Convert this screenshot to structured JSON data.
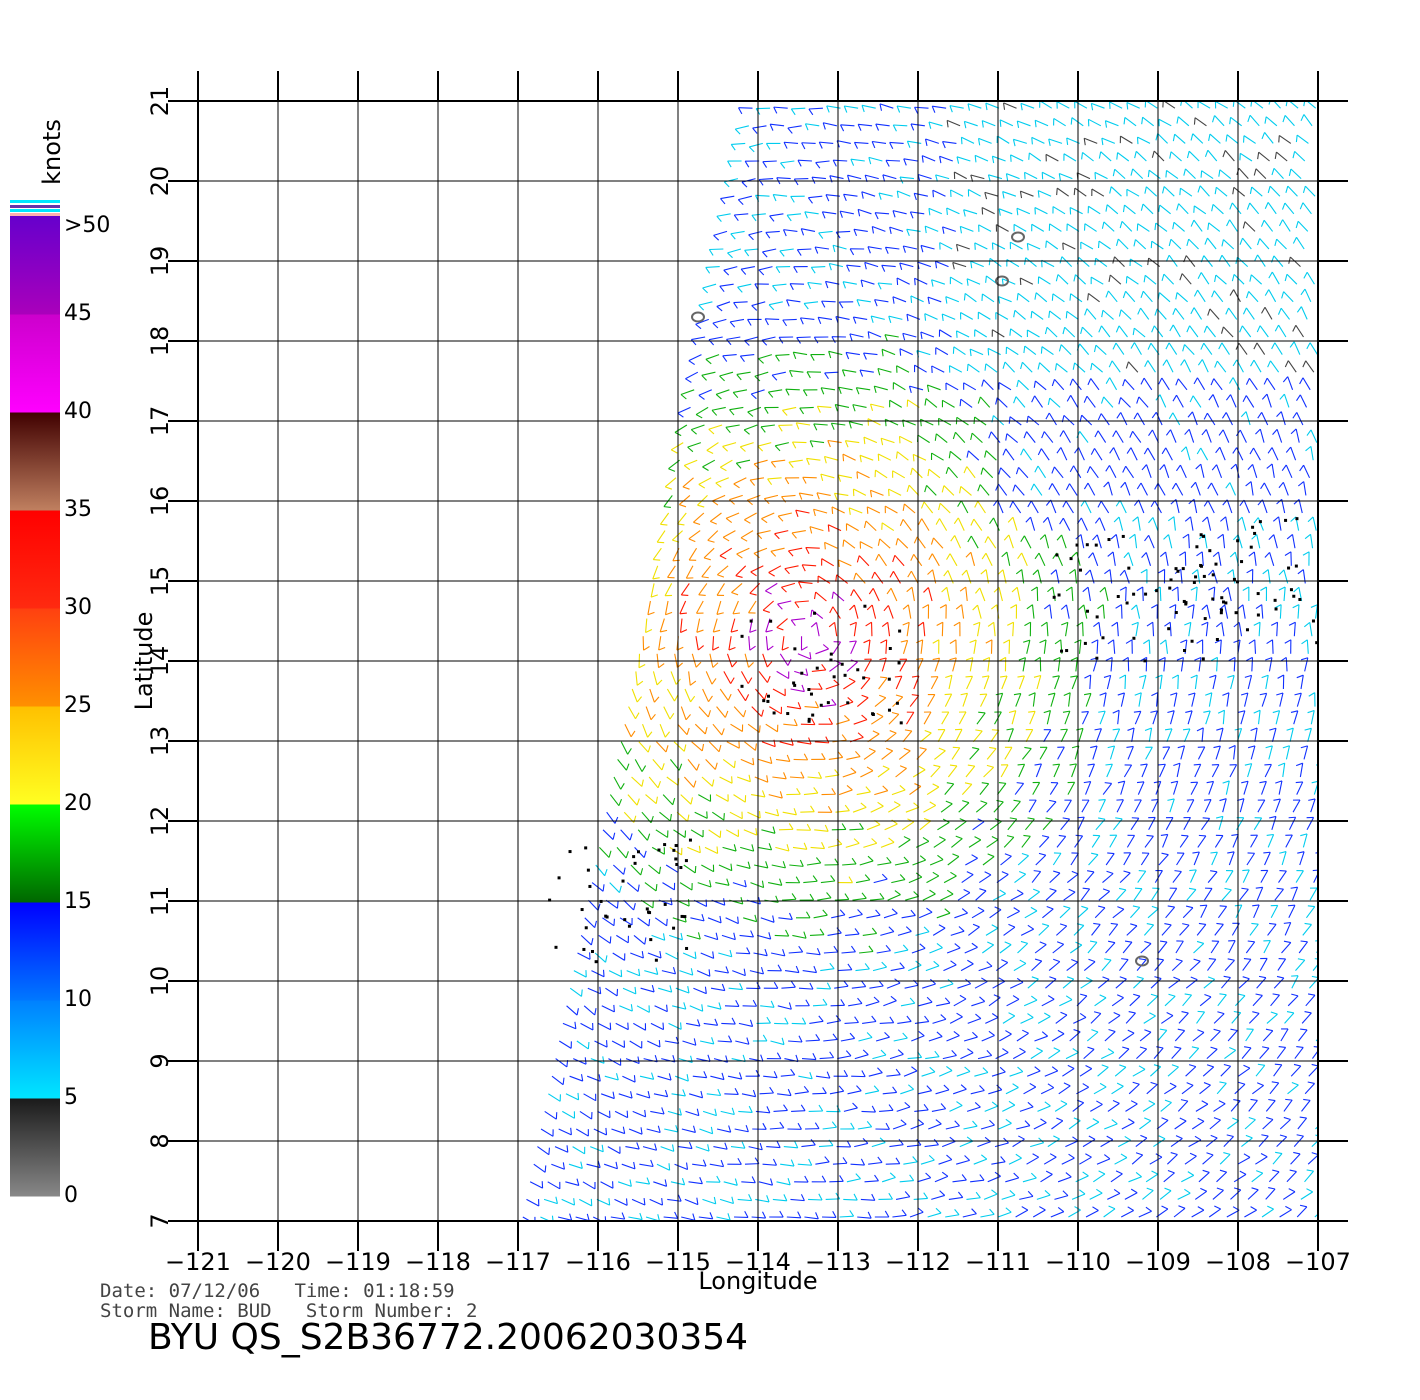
{
  "chart_data": {
    "type": "scatter",
    "subtype": "wind-barb field",
    "xlabel": "Longitude",
    "ylabel": "Latitude",
    "xlim": [
      -121,
      -107
    ],
    "ylim": [
      7,
      21
    ],
    "x_ticks": [
      "-121",
      "-120",
      "-119",
      "-118",
      "-117",
      "-116",
      "-115",
      "-114",
      "-113",
      "-112",
      "-111",
      "-110",
      "-109",
      "-108",
      "-107"
    ],
    "y_ticks": [
      "7",
      "8",
      "9",
      "10",
      "11",
      "12",
      "13",
      "14",
      "15",
      "16",
      "17",
      "18",
      "19",
      "20",
      "21"
    ],
    "grid": true,
    "colorbar": {
      "title": "knots",
      "placement": "left",
      "labels": [
        ">50",
        "45",
        "40",
        "35",
        "30",
        "25",
        "20",
        "15",
        "10",
        "5",
        "0"
      ],
      "bands": [
        {
          "from": 0,
          "to": 5,
          "colors": [
            "#888888",
            "#1a1a1a"
          ]
        },
        {
          "from": 5,
          "to": 10,
          "colors": [
            "#00e6ff",
            "#0080ff"
          ]
        },
        {
          "from": 10,
          "to": 15,
          "colors": [
            "#0078ff",
            "#0000ff"
          ]
        },
        {
          "from": 15,
          "to": 20,
          "colors": [
            "#006600",
            "#00ff00"
          ]
        },
        {
          "from": 20,
          "to": 25,
          "colors": [
            "#ffff22",
            "#ffc000"
          ]
        },
        {
          "from": 25,
          "to": 30,
          "colors": [
            "#ff9000",
            "#ff4010"
          ]
        },
        {
          "from": 30,
          "to": 35,
          "colors": [
            "#ff2a10",
            "#ff0000"
          ]
        },
        {
          "from": 35,
          "to": 40,
          "colors": [
            "#c08060",
            "#400000"
          ]
        },
        {
          "from": 40,
          "to": 45,
          "colors": [
            "#ff00ff",
            "#cc00cc"
          ]
        },
        {
          "from": 45,
          "to": 50,
          "colors": [
            "#aa00bb",
            "#6600cc"
          ]
        }
      ]
    },
    "swath": {
      "lon_left_bottom": -117,
      "lon_left_top": -114.1,
      "lon_right": -107,
      "lat_bottom": 7,
      "lat_top": 21
    },
    "storm_center": {
      "lon": -113.4,
      "lat": 14.3
    },
    "rain_flagged_regions": [
      {
        "lon": -113.2,
        "lat": 14.0
      },
      {
        "lon": -109.3,
        "lat": 14.8
      },
      {
        "lon": -108.0,
        "lat": 15.0
      },
      {
        "lon": -115.8,
        "lat": 11.0
      }
    ],
    "land_outlines": [
      {
        "lon": -110.95,
        "lat": 18.75
      },
      {
        "lon": -110.75,
        "lat": 19.3
      },
      {
        "lon": -114.75,
        "lat": 18.3
      },
      {
        "lon": -109.2,
        "lat": 10.25
      }
    ]
  },
  "meta": {
    "date_line": "Date: 07/12/06   Time: 01:18:59",
    "storm_line": "Storm Name: BUD   Storm Number: 2",
    "file_title": "BYU QS_S2B36772.20062030354"
  }
}
